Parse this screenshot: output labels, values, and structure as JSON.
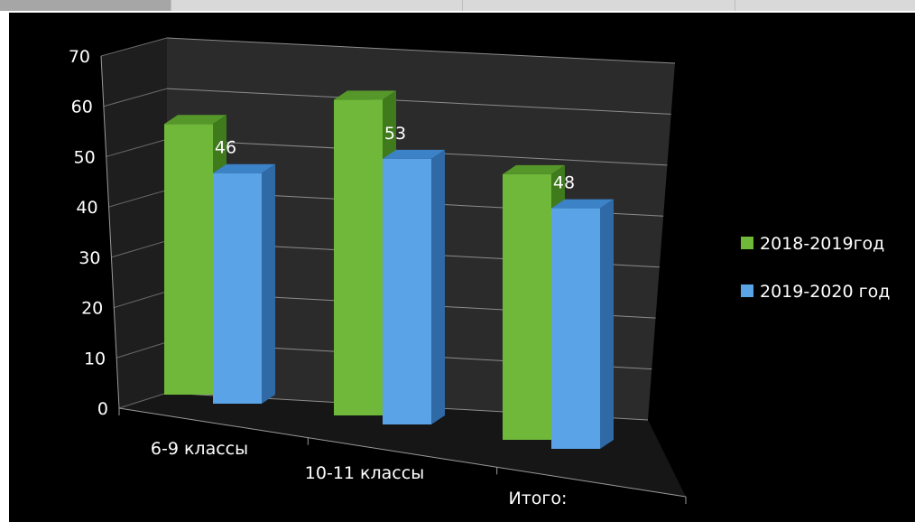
{
  "chart_data": {
    "type": "bar",
    "categories": [
      "6-9 классы",
      "10-11 классы",
      "Итого:"
    ],
    "series": [
      {
        "name": "2018-2019год",
        "values": [
          54,
          63,
          53
        ],
        "color": "#6fb83a"
      },
      {
        "name": "2019-2020 год",
        "values": [
          46,
          53,
          48
        ],
        "color": "#5aa3e6",
        "labels": [
          "46",
          "53",
          "48"
        ]
      }
    ],
    "yticks": [
      "0",
      "10",
      "20",
      "30",
      "40",
      "50",
      "60",
      "70"
    ],
    "ylim": [
      0,
      70
    ],
    "grid": true,
    "legend": "right",
    "background": "#000000"
  }
}
